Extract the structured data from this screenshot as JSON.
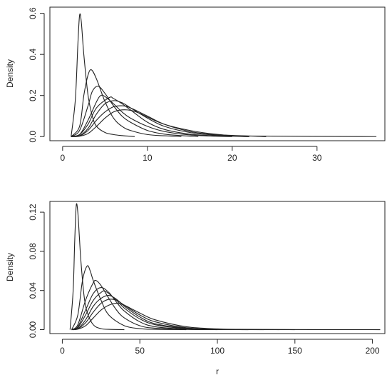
{
  "chart_data": [
    {
      "type": "line",
      "title": "",
      "xlabel": "",
      "ylabel": "Density",
      "xlim": [
        -1.5,
        38
      ],
      "ylim": [
        -0.02,
        0.63
      ],
      "xticks": [
        0,
        10,
        20,
        30
      ],
      "yticks": [
        0.0,
        0.2,
        0.4,
        0.6
      ],
      "ytick_labels": [
        "0.0",
        "0.2",
        "0.4",
        "0.6"
      ],
      "grid": false,
      "legend": "none",
      "color": "#222222",
      "series": [
        {
          "x": [
            1,
            1.5,
            1.8,
            2.0,
            2.2,
            2.5,
            3,
            3.5,
            4,
            5,
            6,
            7,
            8.5
          ],
          "y": [
            0.0,
            0.18,
            0.45,
            0.59,
            0.56,
            0.4,
            0.2,
            0.1,
            0.05,
            0.02,
            0.01,
            0.005,
            0.0
          ]
        },
        {
          "x": [
            1,
            2,
            2.5,
            3,
            3.4,
            4,
            5,
            6,
            7,
            8,
            10,
            12,
            14
          ],
          "y": [
            0.0,
            0.05,
            0.2,
            0.3,
            0.325,
            0.28,
            0.17,
            0.09,
            0.05,
            0.03,
            0.01,
            0.004,
            0.0
          ]
        },
        {
          "x": [
            1,
            2,
            3,
            3.5,
            4.2,
            5,
            6,
            7,
            8,
            10,
            12,
            14,
            16
          ],
          "y": [
            0.0,
            0.03,
            0.15,
            0.22,
            0.245,
            0.21,
            0.15,
            0.1,
            0.07,
            0.03,
            0.012,
            0.005,
            0.0
          ]
        },
        {
          "x": [
            1,
            2,
            3,
            4,
            4.5,
            5,
            6,
            7,
            8,
            10,
            12,
            15,
            18,
            20
          ],
          "y": [
            0.0,
            0.01,
            0.08,
            0.17,
            0.2,
            0.195,
            0.16,
            0.12,
            0.09,
            0.05,
            0.025,
            0.008,
            0.002,
            0.0
          ]
        },
        {
          "x": [
            1,
            2,
            3,
            4,
            5.5,
            6,
            7,
            8,
            10,
            12,
            15,
            18,
            22
          ],
          "y": [
            0.0,
            0.01,
            0.06,
            0.14,
            0.19,
            0.185,
            0.16,
            0.13,
            0.07,
            0.035,
            0.012,
            0.004,
            0.0
          ]
        },
        {
          "x": [
            1,
            2,
            3,
            4,
            5,
            6,
            7,
            8,
            10,
            12,
            15,
            18,
            22
          ],
          "y": [
            0.0,
            0.005,
            0.04,
            0.11,
            0.16,
            0.175,
            0.165,
            0.14,
            0.09,
            0.05,
            0.02,
            0.007,
            0.0
          ]
        },
        {
          "x": [
            1,
            2,
            3,
            4,
            5,
            6,
            7,
            8,
            10,
            12,
            15,
            18,
            24
          ],
          "y": [
            0.0,
            0.003,
            0.03,
            0.08,
            0.12,
            0.145,
            0.15,
            0.14,
            0.1,
            0.06,
            0.025,
            0.01,
            0.0
          ]
        },
        {
          "x": [
            1,
            2,
            3,
            4,
            5,
            6,
            7,
            8,
            9,
            10,
            12,
            15,
            18,
            22,
            37
          ],
          "y": [
            0.0,
            0.002,
            0.015,
            0.05,
            0.09,
            0.12,
            0.13,
            0.128,
            0.115,
            0.095,
            0.06,
            0.03,
            0.012,
            0.003,
            0.0
          ]
        }
      ]
    },
    {
      "type": "line",
      "title": "",
      "xlabel": "r",
      "ylabel": "Density",
      "xlim": [
        -8,
        208
      ],
      "ylim": [
        -0.004,
        0.131
      ],
      "xticks": [
        0,
        50,
        100,
        150,
        200
      ],
      "yticks": [
        0.0,
        0.04,
        0.08,
        0.12
      ],
      "ytick_labels": [
        "0.00",
        "0.04",
        "0.08",
        "0.12"
      ],
      "grid": false,
      "legend": "none",
      "color": "#222222",
      "series": [
        {
          "x": [
            5,
            7,
            8,
            9,
            10,
            11,
            12,
            14,
            16,
            20,
            25,
            30,
            40
          ],
          "y": [
            0.0,
            0.04,
            0.09,
            0.127,
            0.12,
            0.095,
            0.07,
            0.035,
            0.018,
            0.005,
            0.001,
            0.0003,
            0.0
          ]
        },
        {
          "x": [
            6,
            10,
            13,
            16,
            18,
            20,
            25,
            30,
            40,
            50,
            60,
            80
          ],
          "y": [
            0.0,
            0.015,
            0.05,
            0.065,
            0.06,
            0.05,
            0.03,
            0.015,
            0.004,
            0.001,
            0.0003,
            0.0
          ]
        },
        {
          "x": [
            6,
            10,
            15,
            20,
            22,
            25,
            30,
            35,
            40,
            50,
            60,
            80,
            100
          ],
          "y": [
            0.0,
            0.005,
            0.03,
            0.048,
            0.05,
            0.045,
            0.032,
            0.02,
            0.012,
            0.004,
            0.0015,
            0.0002,
            0.0
          ]
        },
        {
          "x": [
            6,
            10,
            15,
            20,
            25,
            30,
            35,
            40,
            50,
            60,
            80,
            100,
            120
          ],
          "y": [
            0.0,
            0.003,
            0.02,
            0.037,
            0.043,
            0.038,
            0.028,
            0.019,
            0.008,
            0.003,
            0.0005,
            0.0001,
            0.0
          ]
        },
        {
          "x": [
            6,
            10,
            15,
            20,
            25,
            28,
            35,
            40,
            50,
            60,
            80,
            100,
            130
          ],
          "y": [
            0.0,
            0.002,
            0.015,
            0.03,
            0.038,
            0.039,
            0.03,
            0.022,
            0.011,
            0.005,
            0.001,
            0.0002,
            0.0
          ]
        },
        {
          "x": [
            6,
            10,
            15,
            20,
            25,
            30,
            35,
            40,
            50,
            60,
            80,
            100,
            140
          ],
          "y": [
            0.0,
            0.001,
            0.01,
            0.024,
            0.032,
            0.035,
            0.031,
            0.024,
            0.013,
            0.006,
            0.0015,
            0.0003,
            0.0
          ]
        },
        {
          "x": [
            6,
            10,
            15,
            20,
            25,
            30,
            35,
            40,
            50,
            60,
            80,
            100,
            150
          ],
          "y": [
            0.0,
            0.0008,
            0.007,
            0.018,
            0.027,
            0.031,
            0.03,
            0.025,
            0.015,
            0.008,
            0.002,
            0.0005,
            0.0
          ]
        },
        {
          "x": [
            6,
            10,
            15,
            20,
            25,
            30,
            35,
            40,
            45,
            50,
            60,
            80,
            100,
            120,
            205
          ],
          "y": [
            0.0,
            0.0005,
            0.004,
            0.012,
            0.02,
            0.025,
            0.027,
            0.025,
            0.021,
            0.017,
            0.01,
            0.003,
            0.0008,
            0.0002,
            0.0
          ]
        }
      ]
    }
  ]
}
